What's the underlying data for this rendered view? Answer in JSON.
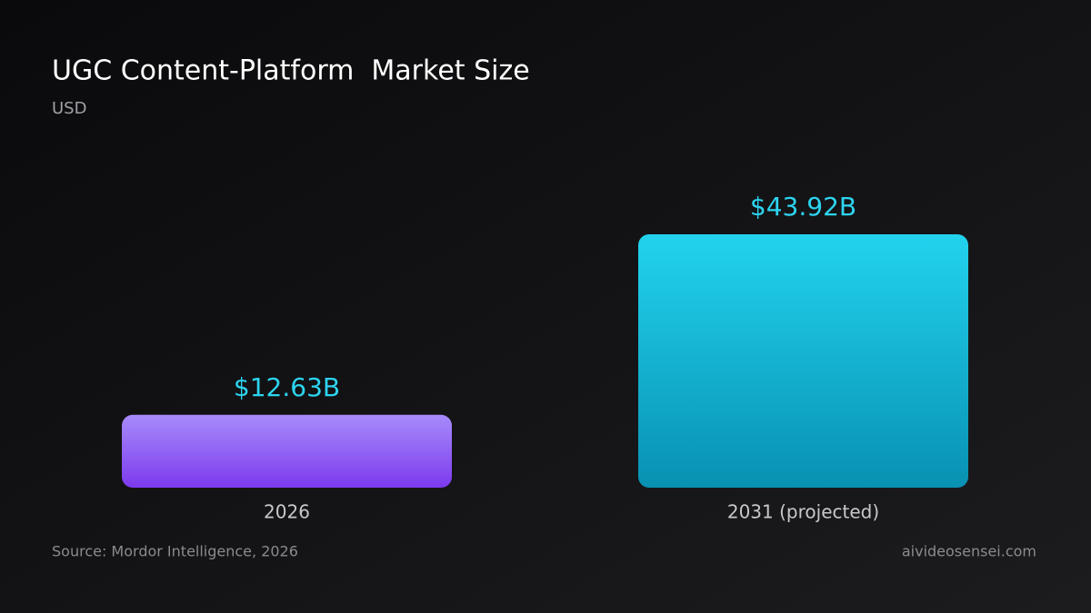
{
  "chart_data": {
    "type": "bar",
    "title": "UGC Content-Platform  Market Size",
    "subtitle": "USD",
    "categories": [
      "2026",
      "2031 (projected)"
    ],
    "values": [
      12.63,
      43.92
    ],
    "value_labels": [
      "$12.63B",
      "$43.92B"
    ],
    "colors": [
      [
        "#a78bfa",
        "#7c3aed"
      ],
      [
        "#22d3ee",
        "#0891b2"
      ]
    ],
    "label_color": "#2dd4f0",
    "source": "Source: Mordor Intelligence, 2026",
    "watermark": "aivideosensei.com"
  }
}
